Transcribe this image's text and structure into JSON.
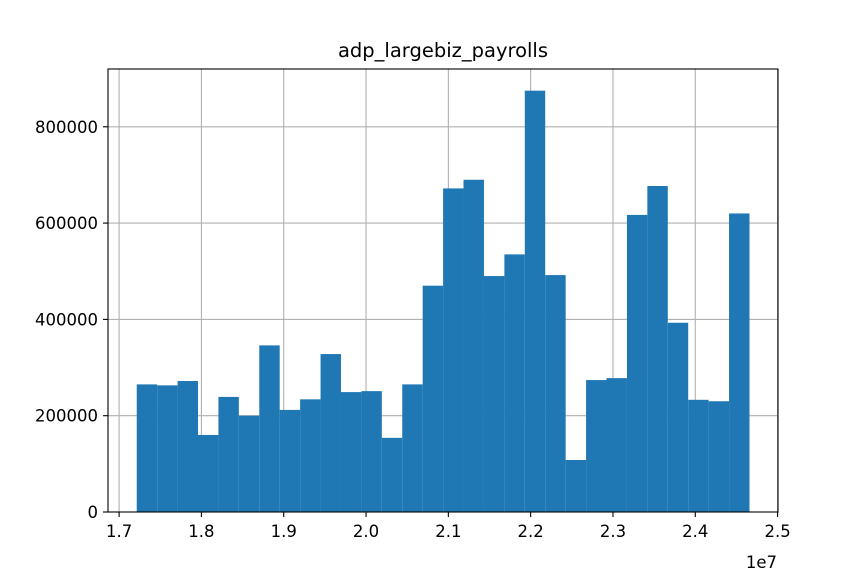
{
  "chart_data": {
    "type": "bar",
    "title": "adp_largebiz_payrolls",
    "xlabel": "",
    "ylabel": "",
    "x_offset_label": "1e7",
    "xlim": [
      1.6865,
      2.5005
    ],
    "ylim": [
      0,
      920000
    ],
    "grid": true,
    "color": "#1f77b4",
    "x_ticks": [
      1.7,
      1.8,
      1.9,
      2.0,
      2.1,
      2.2,
      2.3,
      2.4,
      2.5
    ],
    "x_tick_labels": [
      "1.7",
      "1.8",
      "1.9",
      "2.0",
      "2.1",
      "2.2",
      "2.3",
      "2.4",
      "2.5"
    ],
    "y_ticks": [
      0,
      200000,
      400000,
      600000,
      800000
    ],
    "y_tick_labels": [
      "0",
      "200000",
      "400000",
      "600000",
      "800000"
    ],
    "bin_start": 1.7214,
    "bin_width": 0.024815,
    "values": [
      265000,
      263000,
      272000,
      160000,
      239000,
      200000,
      346000,
      212000,
      234000,
      328000,
      249000,
      251000,
      154000,
      265000,
      470000,
      672000,
      690000,
      490000,
      535000,
      875000,
      492000,
      108000,
      274000,
      278000,
      617000,
      677000,
      393000,
      233000,
      230000,
      620000
    ]
  }
}
